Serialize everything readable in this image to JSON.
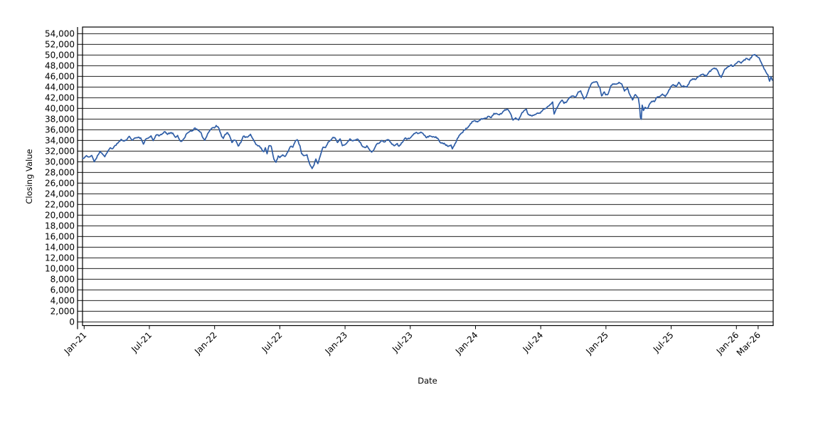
{
  "figure": {
    "xlabel": "Date",
    "ylabel": "Closing Value",
    "background_color": "#ffffff",
    "axis_color": "#000000",
    "grid_color": "#000000"
  },
  "chart_data": {
    "type": "line",
    "title": "",
    "xlabel": "Date",
    "ylabel": "Closing Value",
    "grid": "horizontal",
    "legend": "none",
    "x_unit": "months since Jan-2021",
    "x_range": [
      -0.2,
      63.45
    ],
    "ylim": [
      0,
      54000
    ],
    "y_ticks": {
      "min": 0,
      "max": 54000,
      "step": 2000,
      "labels": [
        "0",
        "2,000",
        "4,000",
        "6,000",
        "8,000",
        "10,000",
        "12,000",
        "14,000",
        "16,000",
        "18,000",
        "20,000",
        "22,000",
        "24,000",
        "26,000",
        "28,000",
        "30,000",
        "32,000",
        "34,000",
        "36,000",
        "38,000",
        "40,000",
        "42,000",
        "44,000",
        "46,000",
        "48,000",
        "50,000",
        "52,000",
        "54,000"
      ]
    },
    "x_ticks": [
      {
        "m": 0,
        "label": "Jan-21"
      },
      {
        "m": 6,
        "label": "Jul-21"
      },
      {
        "m": 12,
        "label": "Jan-22"
      },
      {
        "m": 18,
        "label": "Jul-22"
      },
      {
        "m": 24,
        "label": "Jan-23"
      },
      {
        "m": 30,
        "label": "Jul-23"
      },
      {
        "m": 36,
        "label": "Jan-24"
      },
      {
        "m": 42,
        "label": "Jul-24"
      },
      {
        "m": 48,
        "label": "Jan-25"
      },
      {
        "m": 54,
        "label": "Jul-25"
      },
      {
        "m": 60,
        "label": "Jan-26"
      },
      {
        "m": 62,
        "label": "Mar-26"
      }
    ],
    "series": [
      {
        "name": "Closing Value",
        "color": "#2E5DA6",
        "points": [
          [
            -0.14,
            30650
          ],
          [
            0.0,
            30700
          ],
          [
            0.2,
            31150
          ],
          [
            0.45,
            30900
          ],
          [
            0.7,
            31190
          ],
          [
            0.93,
            29985
          ],
          [
            1.15,
            30720
          ],
          [
            1.45,
            31960
          ],
          [
            1.7,
            31400
          ],
          [
            1.9,
            30935
          ],
          [
            2.15,
            31830
          ],
          [
            2.4,
            32630
          ],
          [
            2.6,
            32425
          ],
          [
            2.85,
            33070
          ],
          [
            3.1,
            33500
          ],
          [
            3.4,
            34200
          ],
          [
            3.65,
            33875
          ],
          [
            3.9,
            34045
          ],
          [
            4.15,
            34780
          ],
          [
            4.4,
            34060
          ],
          [
            4.65,
            34455
          ],
          [
            4.95,
            34580
          ],
          [
            5.2,
            34480
          ],
          [
            5.45,
            33290
          ],
          [
            5.7,
            34300
          ],
          [
            5.95,
            34500
          ],
          [
            6.15,
            34870
          ],
          [
            6.35,
            33965
          ],
          [
            6.65,
            35060
          ],
          [
            6.95,
            34935
          ],
          [
            7.2,
            35265
          ],
          [
            7.45,
            35625
          ],
          [
            7.65,
            35120
          ],
          [
            7.95,
            35455
          ],
          [
            8.15,
            35370
          ],
          [
            8.4,
            34580
          ],
          [
            8.6,
            34935
          ],
          [
            8.8,
            33970
          ],
          [
            8.97,
            33845
          ],
          [
            9.2,
            34380
          ],
          [
            9.45,
            35295
          ],
          [
            9.7,
            35670
          ],
          [
            9.97,
            35820
          ],
          [
            10.2,
            36330
          ],
          [
            10.45,
            35930
          ],
          [
            10.7,
            35600
          ],
          [
            10.93,
            34485
          ],
          [
            11.1,
            34025
          ],
          [
            11.35,
            35230
          ],
          [
            11.6,
            35970
          ],
          [
            11.85,
            36400
          ],
          [
            12.0,
            36340
          ],
          [
            12.15,
            36800
          ],
          [
            12.4,
            36250
          ],
          [
            12.65,
            34715
          ],
          [
            12.8,
            34365
          ],
          [
            12.97,
            35130
          ],
          [
            13.2,
            35460
          ],
          [
            13.4,
            34740
          ],
          [
            13.6,
            33600
          ],
          [
            13.82,
            34060
          ],
          [
            13.97,
            33895
          ],
          [
            14.17,
            32945
          ],
          [
            14.4,
            33550
          ],
          [
            14.63,
            34755
          ],
          [
            14.9,
            34680
          ],
          [
            15.1,
            34720
          ],
          [
            15.3,
            35160
          ],
          [
            15.55,
            34200
          ],
          [
            15.8,
            33240
          ],
          [
            15.97,
            32975
          ],
          [
            16.15,
            32900
          ],
          [
            16.35,
            32250
          ],
          [
            16.52,
            31880
          ],
          [
            16.67,
            32640
          ],
          [
            16.83,
            31490
          ],
          [
            17.0,
            32990
          ],
          [
            17.2,
            32915
          ],
          [
            17.45,
            30515
          ],
          [
            17.65,
            29890
          ],
          [
            17.85,
            31100
          ],
          [
            18.0,
            30775
          ],
          [
            18.25,
            31290
          ],
          [
            18.5,
            31000
          ],
          [
            18.75,
            31900
          ],
          [
            18.97,
            32845
          ],
          [
            19.2,
            32730
          ],
          [
            19.45,
            33980
          ],
          [
            19.6,
            34150
          ],
          [
            19.85,
            33000
          ],
          [
            20.0,
            31510
          ],
          [
            20.25,
            31145
          ],
          [
            20.5,
            31320
          ],
          [
            20.65,
            30180
          ],
          [
            20.83,
            29225
          ],
          [
            20.97,
            28725
          ],
          [
            21.15,
            29375
          ],
          [
            21.32,
            30520
          ],
          [
            21.5,
            29635
          ],
          [
            21.72,
            31080
          ],
          [
            21.97,
            32735
          ],
          [
            22.2,
            32655
          ],
          [
            22.45,
            33700
          ],
          [
            22.65,
            34000
          ],
          [
            22.9,
            34590
          ],
          [
            23.1,
            34430
          ],
          [
            23.3,
            33600
          ],
          [
            23.55,
            34300
          ],
          [
            23.75,
            33000
          ],
          [
            23.97,
            33150
          ],
          [
            24.2,
            33630
          ],
          [
            24.45,
            34300
          ],
          [
            24.65,
            33950
          ],
          [
            24.97,
            34085
          ],
          [
            25.15,
            34250
          ],
          [
            25.35,
            33700
          ],
          [
            25.6,
            32890
          ],
          [
            25.83,
            32660
          ],
          [
            26.0,
            33000
          ],
          [
            26.25,
            32250
          ],
          [
            26.45,
            31820
          ],
          [
            26.65,
            32240
          ],
          [
            26.9,
            33275
          ],
          [
            27.15,
            33480
          ],
          [
            27.35,
            33980
          ],
          [
            27.6,
            33700
          ],
          [
            27.85,
            34100
          ],
          [
            28.05,
            34050
          ],
          [
            28.3,
            33300
          ],
          [
            28.55,
            33000
          ],
          [
            28.8,
            33425
          ],
          [
            28.97,
            32910
          ],
          [
            29.25,
            33575
          ],
          [
            29.5,
            34400
          ],
          [
            29.75,
            34300
          ],
          [
            29.97,
            34410
          ],
          [
            30.2,
            34950
          ],
          [
            30.5,
            35460
          ],
          [
            30.75,
            35310
          ],
          [
            30.97,
            35560
          ],
          [
            31.2,
            35215
          ],
          [
            31.5,
            34500
          ],
          [
            31.75,
            34850
          ],
          [
            31.97,
            34720
          ],
          [
            32.2,
            34650
          ],
          [
            32.5,
            34440
          ],
          [
            32.75,
            33620
          ],
          [
            32.97,
            33510
          ],
          [
            33.2,
            33270
          ],
          [
            33.5,
            32880
          ],
          [
            33.75,
            33130
          ],
          [
            33.87,
            32420
          ],
          [
            34.05,
            33050
          ],
          [
            34.25,
            33875
          ],
          [
            34.5,
            34950
          ],
          [
            34.75,
            35430
          ],
          [
            34.97,
            35950
          ],
          [
            35.2,
            36250
          ],
          [
            35.45,
            36800
          ],
          [
            35.7,
            37555
          ],
          [
            35.97,
            37690
          ],
          [
            36.2,
            37470
          ],
          [
            36.45,
            37870
          ],
          [
            36.7,
            38100
          ],
          [
            36.97,
            38150
          ],
          [
            37.2,
            38520
          ],
          [
            37.45,
            38270
          ],
          [
            37.7,
            39070
          ],
          [
            37.97,
            38995
          ],
          [
            38.2,
            38790
          ],
          [
            38.45,
            39130
          ],
          [
            38.7,
            39760
          ],
          [
            38.97,
            39805
          ],
          [
            39.2,
            39100
          ],
          [
            39.45,
            37800
          ],
          [
            39.7,
            38240
          ],
          [
            39.97,
            37815
          ],
          [
            40.2,
            38850
          ],
          [
            40.45,
            39560
          ],
          [
            40.68,
            39870
          ],
          [
            40.85,
            38850
          ],
          [
            41.0,
            38685
          ],
          [
            41.2,
            38570
          ],
          [
            41.45,
            38840
          ],
          [
            41.7,
            39130
          ],
          [
            41.97,
            39120
          ],
          [
            42.2,
            39720
          ],
          [
            42.45,
            40000
          ],
          [
            42.7,
            40415
          ],
          [
            42.97,
            40845
          ],
          [
            43.1,
            41200
          ],
          [
            43.23,
            38935
          ],
          [
            43.45,
            40010
          ],
          [
            43.7,
            40890
          ],
          [
            43.97,
            41565
          ],
          [
            44.15,
            40935
          ],
          [
            44.4,
            41250
          ],
          [
            44.65,
            42060
          ],
          [
            44.97,
            42330
          ],
          [
            45.2,
            42080
          ],
          [
            45.45,
            43080
          ],
          [
            45.68,
            43275
          ],
          [
            45.97,
            41765
          ],
          [
            46.2,
            42250
          ],
          [
            46.45,
            43730
          ],
          [
            46.7,
            44740
          ],
          [
            46.95,
            44910
          ],
          [
            47.13,
            45015
          ],
          [
            47.45,
            43830
          ],
          [
            47.6,
            42330
          ],
          [
            47.85,
            43100
          ],
          [
            47.97,
            42545
          ],
          [
            48.2,
            42700
          ],
          [
            48.45,
            44250
          ],
          [
            48.7,
            44565
          ],
          [
            48.97,
            44545
          ],
          [
            49.2,
            44875
          ],
          [
            49.45,
            44600
          ],
          [
            49.7,
            43240
          ],
          [
            49.97,
            43840
          ],
          [
            50.2,
            42580
          ],
          [
            50.45,
            41580
          ],
          [
            50.7,
            42590
          ],
          [
            50.97,
            42000
          ],
          [
            51.08,
            40545
          ],
          [
            51.17,
            38315
          ],
          [
            51.25,
            37965
          ],
          [
            51.33,
            40610
          ],
          [
            51.45,
            39590
          ],
          [
            51.6,
            40215
          ],
          [
            51.8,
            39990
          ],
          [
            51.97,
            40670
          ],
          [
            52.2,
            41320
          ],
          [
            52.45,
            41250
          ],
          [
            52.7,
            42100
          ],
          [
            52.97,
            42270
          ],
          [
            53.2,
            42680
          ],
          [
            53.45,
            42200
          ],
          [
            53.7,
            42980
          ],
          [
            53.97,
            44095
          ],
          [
            54.2,
            44460
          ],
          [
            54.45,
            44025
          ],
          [
            54.7,
            44900
          ],
          [
            54.97,
            44130
          ],
          [
            55.2,
            44175
          ],
          [
            55.45,
            43970
          ],
          [
            55.7,
            45010
          ],
          [
            55.97,
            45545
          ],
          [
            56.2,
            45400
          ],
          [
            56.45,
            45830
          ],
          [
            56.7,
            46250
          ],
          [
            56.97,
            46400
          ],
          [
            57.2,
            46020
          ],
          [
            57.45,
            46700
          ],
          [
            57.7,
            47210
          ],
          [
            57.97,
            47560
          ],
          [
            58.2,
            47300
          ],
          [
            58.4,
            46400
          ],
          [
            58.6,
            45800
          ],
          [
            58.8,
            46700
          ],
          [
            58.97,
            47420
          ],
          [
            59.2,
            47720
          ],
          [
            59.45,
            48100
          ],
          [
            59.7,
            47900
          ],
          [
            59.97,
            48400
          ],
          [
            60.2,
            48800
          ],
          [
            60.45,
            48500
          ],
          [
            60.7,
            49100
          ],
          [
            60.97,
            49350
          ],
          [
            61.2,
            49050
          ],
          [
            61.45,
            49850
          ],
          [
            61.7,
            50100
          ],
          [
            61.9,
            49750
          ],
          [
            62.1,
            49450
          ],
          [
            62.3,
            48550
          ],
          [
            62.5,
            47650
          ],
          [
            62.7,
            46900
          ],
          [
            62.9,
            46300
          ],
          [
            63.05,
            45100
          ],
          [
            63.18,
            45950
          ],
          [
            63.3,
            45300
          ]
        ]
      }
    ]
  }
}
